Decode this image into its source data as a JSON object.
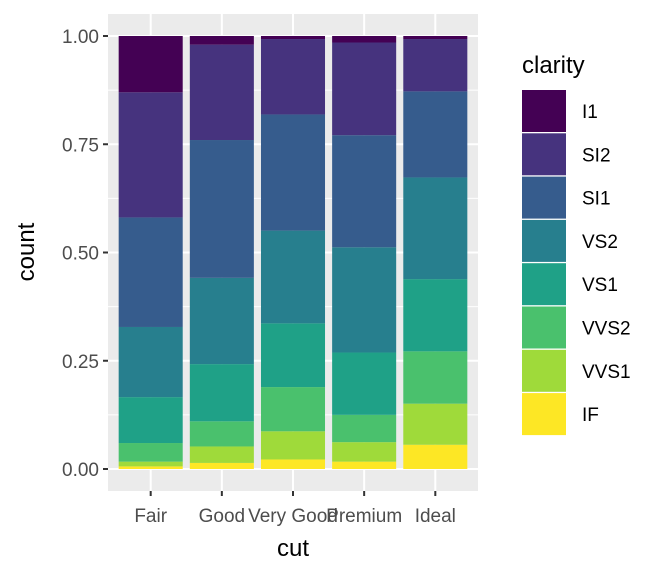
{
  "chart_data": {
    "type": "bar",
    "stacked": "fill",
    "title": "",
    "xlabel": "cut",
    "ylabel": "count",
    "ylim": [
      0,
      1
    ],
    "yticks": [
      "0.00",
      "0.25",
      "0.50",
      "0.75",
      "1.00"
    ],
    "grid": true,
    "categories": [
      "Fair",
      "Good",
      "Very Good",
      "Premium",
      "Ideal"
    ],
    "legend": {
      "title": "clarity",
      "placement": "right"
    },
    "series": [
      {
        "name": "I1",
        "color": "#440154",
        "values": [
          0.13,
          0.02,
          0.007,
          0.015,
          0.007
        ]
      },
      {
        "name": "SI2",
        "color": "#46337E",
        "values": [
          0.289,
          0.22,
          0.174,
          0.214,
          0.121
        ]
      },
      {
        "name": "SI1",
        "color": "#365C8D",
        "values": [
          0.253,
          0.318,
          0.268,
          0.259,
          0.199
        ]
      },
      {
        "name": "VS2",
        "color": "#277F8E",
        "values": [
          0.162,
          0.199,
          0.214,
          0.243,
          0.235
        ]
      },
      {
        "name": "VS1",
        "color": "#1FA187",
        "values": [
          0.106,
          0.132,
          0.147,
          0.144,
          0.167
        ]
      },
      {
        "name": "VVS2",
        "color": "#4AC16D",
        "values": [
          0.043,
          0.058,
          0.102,
          0.063,
          0.121
        ]
      },
      {
        "name": "VVS1",
        "color": "#9FDA3A",
        "values": [
          0.011,
          0.038,
          0.065,
          0.045,
          0.095
        ]
      },
      {
        "name": "IF",
        "color": "#FDE725",
        "values": [
          0.006,
          0.014,
          0.022,
          0.017,
          0.056
        ]
      }
    ]
  }
}
